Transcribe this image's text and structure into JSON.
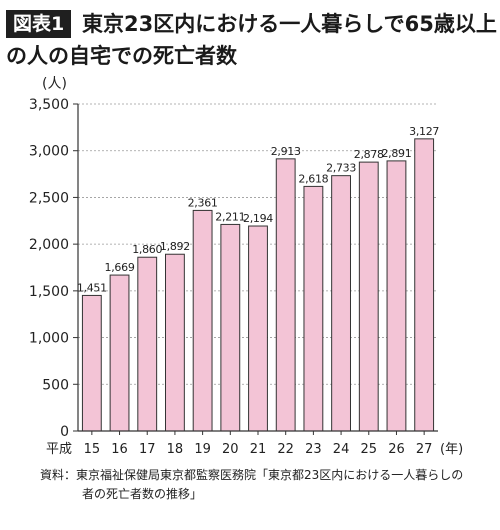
{
  "header": {
    "badge": "図表1",
    "title_line1": "東京23区内における一人暮らしで65歳以上",
    "title_line2": "の人の自宅での死亡者数"
  },
  "chart_data": {
    "type": "bar",
    "title": "東京23区内における一人暮らしで65歳以上の人の自宅での死亡者数",
    "ylabel": "(人)",
    "xlabel": "(年)",
    "era_label": "平成",
    "categories": [
      "15",
      "16",
      "17",
      "18",
      "19",
      "20",
      "21",
      "22",
      "23",
      "24",
      "25",
      "26",
      "27"
    ],
    "values": [
      1451,
      1669,
      1860,
      1892,
      2361,
      2211,
      2194,
      2913,
      2618,
      2733,
      2878,
      2891,
      3127
    ],
    "value_labels": [
      "1,451",
      "1,669",
      "1,860",
      "1,892",
      "2,361",
      "2,211",
      "2,194",
      "2,913",
      "2,618",
      "2,733",
      "2,878",
      "2,891",
      "3,127"
    ],
    "ylim": [
      0,
      3500
    ],
    "yticks": [
      0,
      500,
      1000,
      1500,
      2000,
      2500,
      3000,
      3500
    ],
    "ytick_labels": [
      "0",
      "500",
      "1,000",
      "1,500",
      "2,000",
      "2,500",
      "3,000",
      "3,500"
    ],
    "grid": "horizontal dashed",
    "bar_color": "#f3c4d6",
    "bar_edge_color": "#333333"
  },
  "source": {
    "line1": "資料：東京福祉保健局東京都監察医務院「東京都23区内における一人暮らしの",
    "line2": "者の死亡者数の推移」"
  }
}
